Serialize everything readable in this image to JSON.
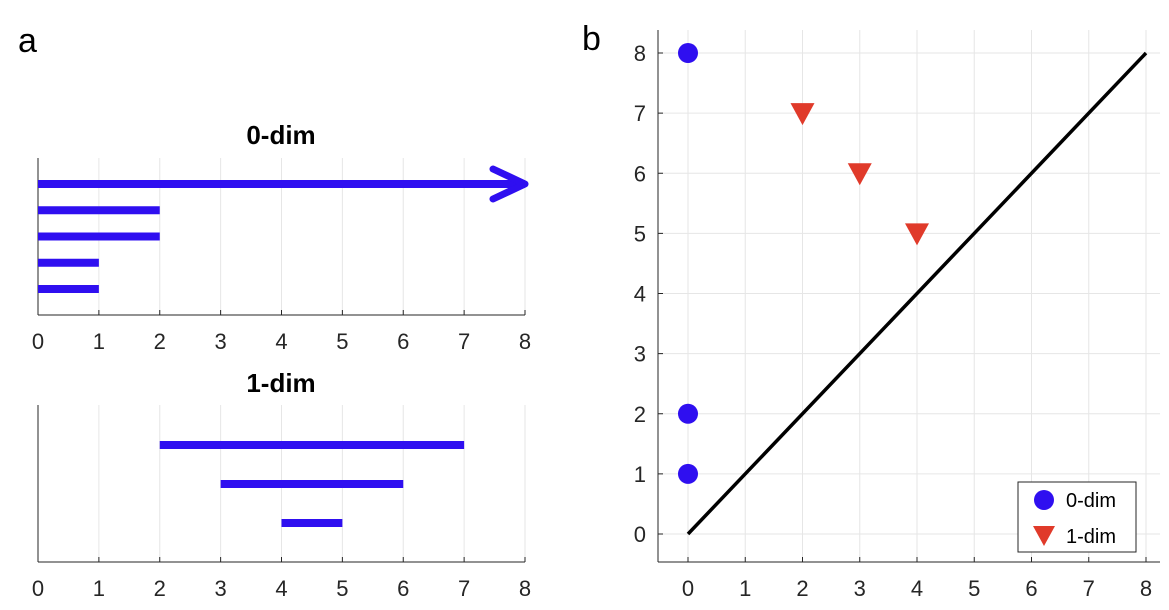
{
  "panels": {
    "a_label": "a",
    "b_label": "b"
  },
  "colors": {
    "dim0": "#2f0ff0",
    "dim1": "#e03a2a",
    "diagonal": "#000000"
  },
  "chart_data": [
    {
      "type": "barcode",
      "title": "0-dim",
      "xlim": [
        0,
        8
      ],
      "xticks": [
        0,
        1,
        2,
        3,
        4,
        5,
        6,
        7,
        8
      ],
      "grid": true,
      "bars": [
        {
          "birth": 0,
          "death": 8,
          "infinite": true
        },
        {
          "birth": 0,
          "death": 2
        },
        {
          "birth": 0,
          "death": 2
        },
        {
          "birth": 0,
          "death": 1
        },
        {
          "birth": 0,
          "death": 1
        }
      ]
    },
    {
      "type": "barcode",
      "title": "1-dim",
      "xlim": [
        0,
        8
      ],
      "xticks": [
        0,
        1,
        2,
        3,
        4,
        5,
        6,
        7,
        8
      ],
      "grid": true,
      "bars": [
        {
          "birth": 2,
          "death": 7
        },
        {
          "birth": 3,
          "death": 6
        },
        {
          "birth": 4,
          "death": 5
        }
      ]
    },
    {
      "type": "scatter",
      "title": "",
      "xlim": [
        0,
        8
      ],
      "ylim": [
        0,
        8
      ],
      "xticks": [
        0,
        1,
        2,
        3,
        4,
        5,
        6,
        7,
        8
      ],
      "yticks": [
        0,
        1,
        2,
        3,
        4,
        5,
        6,
        7,
        8
      ],
      "grid": true,
      "diagonal": [
        [
          0,
          0
        ],
        [
          8,
          8
        ]
      ],
      "legend_position": "bottom-right",
      "series": [
        {
          "name": "0-dim",
          "marker": "circle",
          "points": [
            [
              0,
              1
            ],
            [
              0,
              2
            ],
            [
              0,
              8
            ]
          ]
        },
        {
          "name": "1-dim",
          "marker": "triangle-down",
          "points": [
            [
              2,
              7
            ],
            [
              3,
              6
            ],
            [
              4,
              5
            ]
          ]
        }
      ]
    }
  ]
}
